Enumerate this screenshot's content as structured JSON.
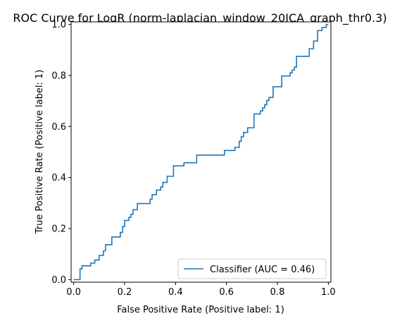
{
  "chart_data": {
    "type": "line",
    "title": "ROC Curve for LogR (norm-laplacian_window_20ICA_graph_thr0.3)",
    "xlabel": "False Positive Rate (Positive label: 1)",
    "ylabel": "True Positive Rate (Positive label: 1)",
    "xlim": [
      -0.01,
      1.01
    ],
    "ylim": [
      -0.01,
      1.01
    ],
    "xticks": [
      0.0,
      0.2,
      0.4,
      0.6,
      0.8,
      1.0
    ],
    "yticks": [
      0.0,
      0.2,
      0.4,
      0.6,
      0.8,
      1.0
    ],
    "xtick_labels": [
      "0.0",
      "0.2",
      "0.4",
      "0.6",
      "0.8",
      "1.0"
    ],
    "ytick_labels": [
      "0.0",
      "0.2",
      "0.4",
      "0.6",
      "0.8",
      "1.0"
    ],
    "grid": false,
    "legend_position": "bottom-right",
    "series": [
      {
        "name": "Classifier (AUC = 0.46)",
        "color": "#1f77b4",
        "drawstyle": "steps",
        "x": [
          0.0,
          0.0,
          0.025,
          0.025,
          0.033,
          0.033,
          0.067,
          0.067,
          0.083,
          0.083,
          0.1,
          0.1,
          0.117,
          0.117,
          0.125,
          0.125,
          0.15,
          0.15,
          0.183,
          0.183,
          0.192,
          0.192,
          0.2,
          0.2,
          0.217,
          0.217,
          0.225,
          0.225,
          0.233,
          0.233,
          0.25,
          0.25,
          0.3,
          0.3,
          0.308,
          0.308,
          0.325,
          0.325,
          0.342,
          0.342,
          0.35,
          0.35,
          0.367,
          0.367,
          0.392,
          0.392,
          0.425,
          0.425,
          0.433,
          0.433,
          0.483,
          0.483,
          0.592,
          0.592,
          0.633,
          0.633,
          0.65,
          0.65,
          0.658,
          0.658,
          0.667,
          0.667,
          0.683,
          0.683,
          0.708,
          0.708,
          0.733,
          0.733,
          0.742,
          0.742,
          0.75,
          0.75,
          0.758,
          0.758,
          0.767,
          0.767,
          0.783,
          0.783,
          0.817,
          0.817,
          0.85,
          0.85,
          0.858,
          0.858,
          0.867,
          0.867,
          0.875,
          0.875,
          0.883,
          0.883,
          0.925,
          0.925,
          0.942,
          0.942,
          0.958,
          0.958,
          0.975,
          0.975,
          0.992,
          0.992,
          1.0
        ],
        "y": [
          0.0,
          0.0,
          0.0,
          0.042,
          0.042,
          0.054,
          0.054,
          0.065,
          0.065,
          0.077,
          0.077,
          0.095,
          0.095,
          0.113,
          0.113,
          0.137,
          0.137,
          0.167,
          0.167,
          0.185,
          0.185,
          0.208,
          0.208,
          0.232,
          0.232,
          0.244,
          0.244,
          0.256,
          0.256,
          0.274,
          0.274,
          0.298,
          0.298,
          0.315,
          0.315,
          0.333,
          0.333,
          0.351,
          0.351,
          0.363,
          0.363,
          0.381,
          0.381,
          0.405,
          0.405,
          0.446,
          0.446,
          0.446,
          0.446,
          0.458,
          0.458,
          0.488,
          0.488,
          0.506,
          0.506,
          0.518,
          0.518,
          0.542,
          0.542,
          0.56,
          0.56,
          0.577,
          0.577,
          0.595,
          0.595,
          0.649,
          0.649,
          0.661,
          0.661,
          0.673,
          0.673,
          0.685,
          0.685,
          0.702,
          0.702,
          0.714,
          0.714,
          0.756,
          0.756,
          0.798,
          0.798,
          0.81,
          0.81,
          0.821,
          0.821,
          0.833,
          0.833,
          0.875,
          0.875,
          0.875,
          0.875,
          0.905,
          0.905,
          0.935,
          0.935,
          0.976,
          0.976,
          0.988,
          0.988,
          1.0,
          1.0
        ]
      }
    ]
  }
}
